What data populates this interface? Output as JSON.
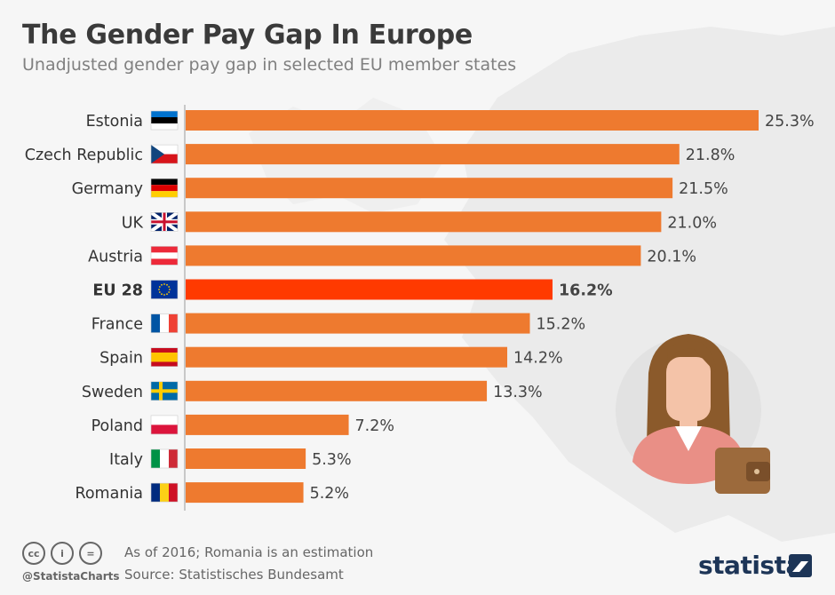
{
  "header": {
    "title": "The Gender Pay Gap In Europe",
    "subtitle": "Unadjusted gender pay gap in selected EU member states"
  },
  "chart_data": {
    "type": "bar",
    "orientation": "horizontal",
    "categories": [
      "Estonia",
      "Czech Republic",
      "Germany",
      "UK",
      "Austria",
      "EU 28",
      "France",
      "Spain",
      "Sweden",
      "Poland",
      "Italy",
      "Romania"
    ],
    "values": [
      25.3,
      21.8,
      21.5,
      21.0,
      20.1,
      16.2,
      15.2,
      14.2,
      13.3,
      7.2,
      5.3,
      5.2
    ],
    "value_labels": [
      "25.3%",
      "21.8%",
      "21.5%",
      "21.0%",
      "20.1%",
      "16.2%",
      "15.2%",
      "14.2%",
      "13.3%",
      "7.2%",
      "5.3%",
      "5.2%"
    ],
    "highlight": "EU 28",
    "colors": {
      "bar": "#ee7a2f",
      "highlight": "#ff3a00"
    },
    "xlim": [
      0,
      25.3
    ],
    "grid": false
  },
  "footer": {
    "note": "As of 2016; Romania is an estimation",
    "source": "Source: Statistisches Bundesamt",
    "handle": "@StatistaCharts",
    "brand": "statista",
    "license_icons": [
      "cc-icon",
      "attribution-icon",
      "no-derivatives-icon"
    ]
  },
  "illustration": {
    "icons": [
      "woman-avatar-icon",
      "wallet-icon"
    ]
  }
}
